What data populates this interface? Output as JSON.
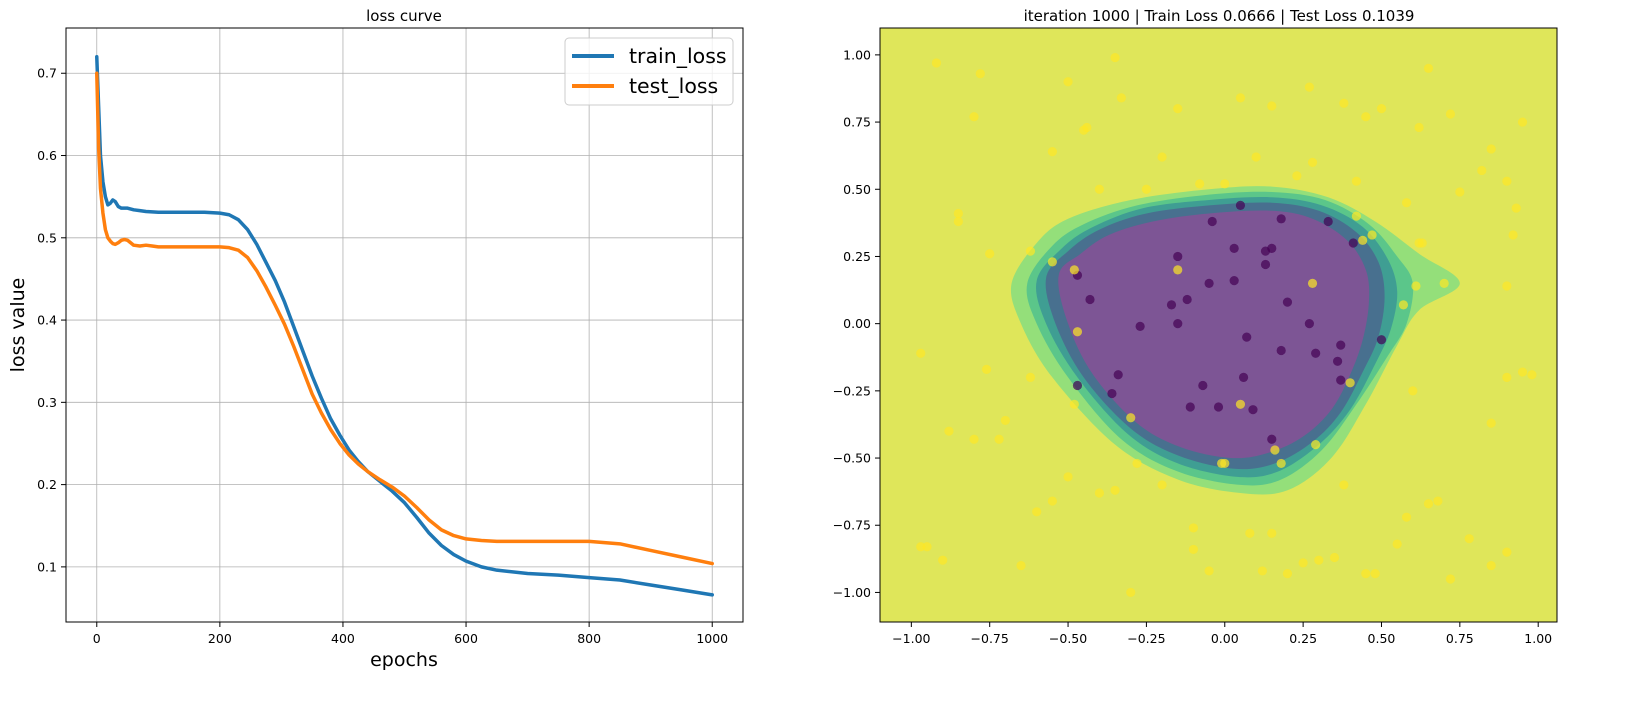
{
  "chart_data": [
    {
      "type": "line",
      "title": "loss curve",
      "xlabel": "epochs",
      "ylabel": "loss value",
      "xlim": [
        -50,
        1050
      ],
      "ylim": [
        0.033,
        0.755
      ],
      "xticks": [
        0,
        200,
        400,
        600,
        800,
        1000
      ],
      "xtick_labels": [
        "0",
        "200",
        "400",
        "600",
        "800",
        "1000"
      ],
      "yticks": [
        0.1,
        0.2,
        0.3,
        0.4,
        0.5,
        0.6,
        0.7
      ],
      "ytick_labels": [
        "0.1",
        "0.2",
        "0.3",
        "0.4",
        "0.5",
        "0.6",
        "0.7"
      ],
      "grid": true,
      "legend_position": "top-right",
      "series": [
        {
          "name": "train_loss",
          "color": "#1f77b4",
          "x": [
            0,
            3,
            6,
            10,
            14,
            18,
            22,
            26,
            30,
            35,
            40,
            45,
            50,
            60,
            70,
            80,
            100,
            125,
            150,
            175,
            200,
            215,
            230,
            245,
            260,
            275,
            290,
            305,
            320,
            335,
            350,
            365,
            380,
            395,
            410,
            425,
            440,
            460,
            480,
            500,
            520,
            540,
            560,
            580,
            600,
            625,
            650,
            700,
            750,
            800,
            850,
            900,
            950,
            1000
          ],
          "y": [
            0.72,
            0.66,
            0.6,
            0.568,
            0.55,
            0.54,
            0.542,
            0.546,
            0.544,
            0.538,
            0.536,
            0.536,
            0.536,
            0.534,
            0.533,
            0.532,
            0.531,
            0.531,
            0.531,
            0.531,
            0.53,
            0.528,
            0.522,
            0.51,
            0.492,
            0.47,
            0.448,
            0.422,
            0.392,
            0.362,
            0.332,
            0.305,
            0.28,
            0.26,
            0.242,
            0.228,
            0.216,
            0.204,
            0.192,
            0.178,
            0.16,
            0.141,
            0.126,
            0.115,
            0.107,
            0.1,
            0.096,
            0.092,
            0.09,
            0.087,
            0.084,
            0.078,
            0.072,
            0.066
          ]
        },
        {
          "name": "test_loss",
          "color": "#ff7f0e",
          "x": [
            0,
            3,
            6,
            10,
            14,
            18,
            22,
            26,
            30,
            35,
            40,
            45,
            50,
            55,
            60,
            70,
            80,
            90,
            100,
            125,
            150,
            175,
            200,
            215,
            230,
            245,
            260,
            275,
            290,
            305,
            320,
            335,
            350,
            365,
            380,
            395,
            410,
            425,
            440,
            460,
            480,
            500,
            520,
            540,
            560,
            580,
            600,
            625,
            650,
            700,
            750,
            800,
            850,
            900,
            950,
            1000
          ],
          "y": [
            0.7,
            0.61,
            0.56,
            0.53,
            0.51,
            0.5,
            0.496,
            0.493,
            0.492,
            0.494,
            0.497,
            0.498,
            0.497,
            0.494,
            0.491,
            0.49,
            0.491,
            0.49,
            0.489,
            0.489,
            0.489,
            0.489,
            0.489,
            0.488,
            0.485,
            0.476,
            0.46,
            0.44,
            0.418,
            0.395,
            0.368,
            0.339,
            0.31,
            0.287,
            0.267,
            0.25,
            0.236,
            0.225,
            0.216,
            0.206,
            0.197,
            0.186,
            0.172,
            0.157,
            0.145,
            0.138,
            0.134,
            0.132,
            0.131,
            0.131,
            0.131,
            0.131,
            0.128,
            0.12,
            0.112,
            0.104
          ]
        }
      ]
    },
    {
      "type": "scatter",
      "title": "iteration 1000 | Train Loss 0.0666 | Test Loss 0.1039",
      "xlim": [
        -1.1,
        1.06
      ],
      "ylim": [
        -1.11,
        1.1
      ],
      "xticks": [
        -1.0,
        -0.75,
        -0.5,
        -0.25,
        0.0,
        0.25,
        0.5,
        0.75,
        1.0
      ],
      "xtick_labels": [
        "−1.00",
        "−0.75",
        "−0.50",
        "−0.25",
        "0.00",
        "0.25",
        "0.50",
        "0.75",
        "1.00"
      ],
      "yticks": [
        -1.0,
        -0.75,
        -0.5,
        -0.25,
        0.0,
        0.25,
        0.5,
        0.75,
        1.0
      ],
      "ytick_labels": [
        "−1.00",
        "−0.75",
        "−0.50",
        "−0.25",
        "0.00",
        "0.25",
        "0.50",
        "0.75",
        "1.00"
      ],
      "grid": false,
      "background_color": "#dfe65a",
      "contour_levels": [
        {
          "color": "#94df7a",
          "points": [
            [
              -0.68,
              0.15
            ],
            [
              -0.6,
              0.3
            ],
            [
              -0.5,
              0.39
            ],
            [
              -0.3,
              0.46
            ],
            [
              -0.05,
              0.5
            ],
            [
              0.15,
              0.51
            ],
            [
              0.33,
              0.47
            ],
            [
              0.48,
              0.38
            ],
            [
              0.62,
              0.26
            ],
            [
              0.75,
              0.15
            ],
            [
              0.62,
              0.05
            ],
            [
              0.55,
              -0.08
            ],
            [
              0.45,
              -0.3
            ],
            [
              0.34,
              -0.5
            ],
            [
              0.2,
              -0.62
            ],
            [
              0.05,
              -0.63
            ],
            [
              -0.15,
              -0.58
            ],
            [
              -0.35,
              -0.45
            ],
            [
              -0.55,
              -0.2
            ],
            [
              -0.65,
              0.0
            ]
          ]
        },
        {
          "color": "#5bc68a",
          "points": [
            [
              -0.63,
              0.15
            ],
            [
              -0.55,
              0.29
            ],
            [
              -0.45,
              0.37
            ],
            [
              -0.28,
              0.44
            ],
            [
              -0.05,
              0.48
            ],
            [
              0.15,
              0.49
            ],
            [
              0.32,
              0.46
            ],
            [
              0.46,
              0.37
            ],
            [
              0.55,
              0.25
            ],
            [
              0.6,
              0.15
            ],
            [
              0.58,
              0.0
            ],
            [
              0.52,
              -0.12
            ],
            [
              0.42,
              -0.3
            ],
            [
              0.31,
              -0.47
            ],
            [
              0.18,
              -0.58
            ],
            [
              0.05,
              -0.6
            ],
            [
              -0.15,
              -0.55
            ],
            [
              -0.33,
              -0.43
            ],
            [
              -0.5,
              -0.2
            ],
            [
              -0.6,
              0.0
            ]
          ]
        },
        {
          "color": "#3f9e93",
          "points": [
            [
              -0.6,
              0.16
            ],
            [
              -0.52,
              0.28
            ],
            [
              -0.42,
              0.36
            ],
            [
              -0.26,
              0.43
            ],
            [
              -0.05,
              0.46
            ],
            [
              0.15,
              0.47
            ],
            [
              0.31,
              0.44
            ],
            [
              0.44,
              0.36
            ],
            [
              0.52,
              0.24
            ],
            [
              0.55,
              0.12
            ],
            [
              0.53,
              -0.02
            ],
            [
              0.48,
              -0.15
            ],
            [
              0.4,
              -0.32
            ],
            [
              0.3,
              -0.45
            ],
            [
              0.17,
              -0.55
            ],
            [
              0.04,
              -0.57
            ],
            [
              -0.15,
              -0.52
            ],
            [
              -0.31,
              -0.41
            ],
            [
              -0.47,
              -0.2
            ],
            [
              -0.57,
              0.0
            ]
          ]
        },
        {
          "color": "#48708f",
          "points": [
            [
              -0.57,
              0.17
            ],
            [
              -0.5,
              0.27
            ],
            [
              -0.4,
              0.35
            ],
            [
              -0.25,
              0.41
            ],
            [
              -0.05,
              0.44
            ],
            [
              0.15,
              0.45
            ],
            [
              0.3,
              0.42
            ],
            [
              0.42,
              0.34
            ],
            [
              0.49,
              0.23
            ],
            [
              0.51,
              0.1
            ],
            [
              0.49,
              -0.05
            ],
            [
              0.44,
              -0.18
            ],
            [
              0.37,
              -0.33
            ],
            [
              0.28,
              -0.44
            ],
            [
              0.16,
              -0.52
            ],
            [
              0.03,
              -0.54
            ],
            [
              -0.15,
              -0.49
            ],
            [
              -0.3,
              -0.39
            ],
            [
              -0.45,
              -0.2
            ],
            [
              -0.54,
              0.0
            ]
          ]
        },
        {
          "color": "#7d5595",
          "points": [
            [
              -0.53,
              0.18
            ],
            [
              -0.46,
              0.26
            ],
            [
              -0.37,
              0.33
            ],
            [
              -0.23,
              0.38
            ],
            [
              -0.05,
              0.41
            ],
            [
              0.15,
              0.42
            ],
            [
              0.28,
              0.39
            ],
            [
              0.39,
              0.31
            ],
            [
              0.45,
              0.2
            ],
            [
              0.46,
              0.08
            ],
            [
              0.44,
              -0.06
            ],
            [
              0.4,
              -0.19
            ],
            [
              0.34,
              -0.32
            ],
            [
              0.25,
              -0.42
            ],
            [
              0.14,
              -0.48
            ],
            [
              0.02,
              -0.5
            ],
            [
              -0.14,
              -0.46
            ],
            [
              -0.28,
              -0.37
            ],
            [
              -0.42,
              -0.19
            ],
            [
              -0.5,
              0.0
            ]
          ]
        }
      ],
      "series": [
        {
          "name": "",
          "color": "#440154",
          "x": [
            0.05,
            -0.04,
            0.18,
            0.33,
            0.41,
            -0.47,
            -0.15,
            -0.12,
            -0.05,
            0.03,
            0.13,
            0.15,
            0.03,
            0.13,
            -0.43,
            -0.17,
            -0.27,
            -0.15,
            0.2,
            0.27,
            0.07,
            0.18,
            0.29,
            0.37,
            0.5,
            -0.34,
            0.36,
            0.37,
            -0.07,
            0.06,
            -0.47,
            -0.36,
            -0.11,
            -0.02,
            0.09,
            0.15
          ],
          "y": [
            0.44,
            0.38,
            0.39,
            0.38,
            0.3,
            0.18,
            0.25,
            0.09,
            0.15,
            0.28,
            0.27,
            0.28,
            0.16,
            0.22,
            0.09,
            0.07,
            -0.01,
            0.0,
            0.08,
            0.0,
            -0.05,
            -0.1,
            -0.11,
            -0.08,
            -0.06,
            -0.19,
            -0.14,
            -0.21,
            -0.23,
            -0.2,
            -0.23,
            -0.26,
            -0.31,
            -0.31,
            -0.32,
            -0.43
          ],
          "size": 8.5
        },
        {
          "name": "",
          "color": "#fde725",
          "x": [
            -0.5,
            -0.44,
            -0.33,
            -0.15,
            0.05,
            0.15,
            0.27,
            0.38,
            0.5,
            0.65,
            0.72,
            -0.78,
            -0.35,
            0.85,
            -0.55,
            -0.2,
            0.1,
            0.28,
            0.45,
            0.62,
            0.82,
            0.95,
            -0.62,
            -0.4,
            -0.08,
            0.23,
            0.42,
            0.58,
            0.9,
            -0.75,
            -0.25,
            0.0,
            0.75,
            -0.85,
            -0.55,
            -0.15,
            0.28,
            0.7,
            0.93,
            -0.7,
            -0.3,
            0.05,
            0.4,
            0.6,
            0.9,
            -0.97,
            -0.88,
            -0.72,
            -0.55,
            -0.35,
            -0.1,
            0.12,
            0.3,
            0.48,
            0.68,
            0.85,
            0.98,
            -0.6,
            -0.4,
            -0.2,
            0.0,
            0.2,
            0.38,
            0.58,
            0.78,
            -0.95,
            -0.8,
            -0.65,
            -0.5,
            -0.3,
            -0.05,
            0.15,
            0.35,
            0.55,
            0.72,
            0.9,
            -0.9,
            -0.76,
            -0.62,
            -0.48,
            -0.28,
            -0.1,
            0.08,
            0.25,
            0.45,
            0.65,
            0.85,
            -0.92,
            -0.8,
            -0.45,
            0.92,
            0.62,
            -0.48,
            -0.47,
            0.42,
            0.47,
            0.44,
            0.57,
            0.61,
            0.63,
            -0.01,
            0.16,
            0.18,
            0.29,
            -0.85,
            0.95,
            0.9,
            -0.97
          ],
          "y": [
            0.9,
            0.73,
            0.84,
            0.8,
            0.84,
            0.81,
            0.88,
            0.82,
            0.8,
            0.95,
            0.78,
            0.93,
            0.99,
            0.65,
            0.64,
            0.62,
            0.62,
            0.6,
            0.77,
            0.73,
            0.57,
            0.75,
            0.27,
            0.5,
            0.52,
            0.55,
            0.53,
            0.45,
            0.53,
            0.26,
            0.5,
            0.52,
            0.49,
            0.38,
            0.23,
            0.2,
            0.15,
            0.15,
            0.43,
            -0.36,
            -0.35,
            -0.3,
            -0.22,
            -0.25,
            -0.2,
            -0.11,
            -0.4,
            -0.43,
            -0.66,
            -0.62,
            -0.76,
            -0.92,
            -0.88,
            -0.93,
            -0.66,
            -0.37,
            -0.19,
            -0.7,
            -0.63,
            -0.6,
            -0.52,
            -0.93,
            -0.6,
            -0.72,
            -0.8,
            -0.83,
            -0.43,
            -0.9,
            -0.57,
            -1.0,
            -0.92,
            -0.78,
            -0.87,
            -0.82,
            -0.95,
            -0.85,
            -0.88,
            -0.17,
            -0.2,
            -0.3,
            -0.52,
            -0.84,
            -0.78,
            -0.89,
            -0.93,
            -0.67,
            -0.9,
            0.97,
            0.77,
            0.72,
            0.33,
            0.3,
            0.2,
            -0.03,
            0.4,
            0.33,
            0.31,
            0.07,
            0.14,
            0.3,
            -0.52,
            -0.47,
            -0.52,
            -0.45,
            0.41,
            -0.18,
            0.14,
            -0.83
          ],
          "size": 8.5
        }
      ]
    }
  ]
}
